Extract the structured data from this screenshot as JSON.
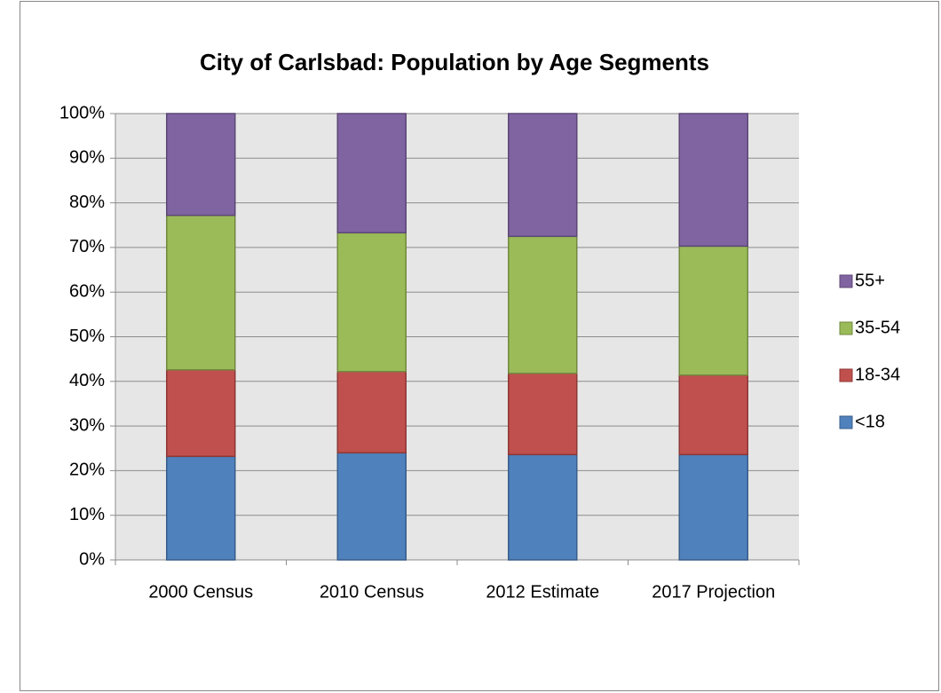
{
  "chart_data": {
    "type": "stacked_bar",
    "title": "City of Carlsbad:  Population by Age Segments",
    "categories": [
      "2000 Census",
      "2010 Census",
      "2012 Estimate",
      "2017 Projection"
    ],
    "series": [
      {
        "name": "<18",
        "color": "#4f81bd",
        "values": [
          23.2,
          24.0,
          23.6,
          23.6
        ]
      },
      {
        "name": "18-34",
        "color": "#c0504d",
        "values": [
          19.4,
          18.2,
          18.2,
          17.8
        ]
      },
      {
        "name": "35-54",
        "color": "#9bbb59",
        "values": [
          34.6,
          31.1,
          30.7,
          28.9
        ]
      },
      {
        "name": "55+",
        "color": "#8064a2",
        "values": [
          22.8,
          26.7,
          27.5,
          29.7
        ]
      }
    ],
    "ylim": [
      0,
      100
    ],
    "yticks": [
      {
        "value": 0,
        "label": "0%"
      },
      {
        "value": 10,
        "label": "10%"
      },
      {
        "value": 20,
        "label": "20%"
      },
      {
        "value": 30,
        "label": "30%"
      },
      {
        "value": 40,
        "label": "40%"
      },
      {
        "value": 50,
        "label": "50%"
      },
      {
        "value": 60,
        "label": "60%"
      },
      {
        "value": 70,
        "label": "70%"
      },
      {
        "value": 80,
        "label": "80%"
      },
      {
        "value": 90,
        "label": "90%"
      },
      {
        "value": 100,
        "label": "100%"
      }
    ],
    "grid": true,
    "legend": "right"
  }
}
